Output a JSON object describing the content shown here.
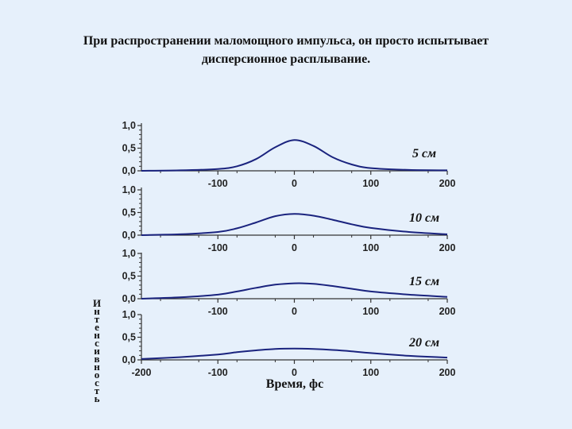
{
  "title": {
    "line1": "При распространении маломощного импульса, он просто испытывает",
    "line2": "дисперсионное расплывание."
  },
  "colors": {
    "curve": "#1a237e",
    "axis": "#333333"
  },
  "chart_data": {
    "type": "line",
    "xlabel": "Время, фс",
    "ylabel": "Интенсивность",
    "yticks": [
      "0,0",
      "0,5",
      "1,0"
    ],
    "ylim": [
      0,
      1
    ],
    "grid": false,
    "panels": [
      {
        "label": "5 см",
        "xlim": [
          -200,
          200
        ],
        "xtick_values": [
          -100,
          0,
          100,
          200
        ],
        "xtick_labels": [
          "-100",
          "0",
          "100",
          "200"
        ],
        "x": [
          -200,
          -150,
          -100,
          -75,
          -50,
          -25,
          0,
          25,
          50,
          75,
          100,
          150,
          200
        ],
        "y": [
          0.0,
          0.01,
          0.04,
          0.1,
          0.26,
          0.52,
          0.68,
          0.55,
          0.3,
          0.14,
          0.06,
          0.02,
          0.01
        ]
      },
      {
        "label": "10 см",
        "xlim": [
          -200,
          200
        ],
        "xtick_values": [
          -100,
          0,
          100,
          200
        ],
        "xtick_labels": [
          "-100",
          "0",
          "100",
          "200"
        ],
        "x": [
          -200,
          -150,
          -100,
          -75,
          -50,
          -25,
          0,
          25,
          50,
          75,
          100,
          150,
          200
        ],
        "y": [
          0.0,
          0.02,
          0.07,
          0.15,
          0.28,
          0.42,
          0.47,
          0.43,
          0.34,
          0.24,
          0.16,
          0.07,
          0.02
        ]
      },
      {
        "label": "15 см",
        "xlim": [
          -200,
          200
        ],
        "xtick_values": [
          -100,
          0,
          100,
          200
        ],
        "xtick_labels": [
          "-100",
          "0",
          "100",
          "200"
        ],
        "x": [
          -200,
          -150,
          -100,
          -75,
          -50,
          -25,
          0,
          25,
          50,
          75,
          100,
          150,
          200
        ],
        "y": [
          0.0,
          0.03,
          0.09,
          0.16,
          0.24,
          0.31,
          0.34,
          0.33,
          0.28,
          0.22,
          0.16,
          0.09,
          0.04
        ]
      },
      {
        "label": "20 см",
        "xlim": [
          -200,
          200
        ],
        "xtick_values": [
          -200,
          -100,
          0,
          100,
          200
        ],
        "xtick_labels": [
          "-200",
          "-100",
          "0",
          "100",
          "200"
        ],
        "x": [
          -200,
          -150,
          -100,
          -75,
          -50,
          -25,
          0,
          25,
          50,
          75,
          100,
          150,
          200
        ],
        "y": [
          0.02,
          0.06,
          0.12,
          0.17,
          0.21,
          0.24,
          0.25,
          0.24,
          0.22,
          0.19,
          0.15,
          0.09,
          0.05
        ]
      }
    ]
  }
}
